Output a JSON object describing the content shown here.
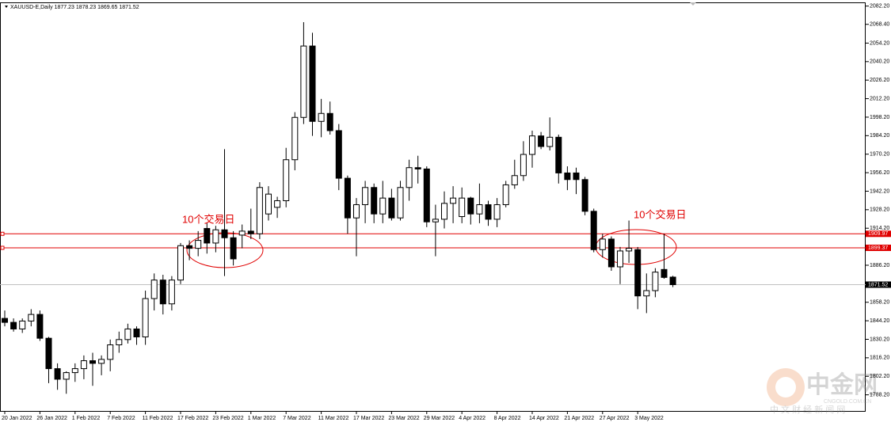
{
  "chart_data": {
    "type": "candlestick",
    "title": "XAUUSD-E,Daily  1877.23 1878.23 1869.65 1871.52",
    "categories": [
      "20 Jan 2022",
      null,
      null,
      null,
      "26 Jan 2022",
      null,
      null,
      null,
      "1 Feb 2022",
      null,
      null,
      null,
      "7 Feb 2022",
      null,
      null,
      null,
      "11 Feb 2022",
      null,
      null,
      null,
      "17 Feb 2022",
      null,
      null,
      null,
      "23 Feb 2022",
      null,
      null,
      null,
      "1 Mar 2022",
      null,
      null,
      null,
      "7 Mar 2022",
      null,
      null,
      null,
      "11 Mar 2022",
      null,
      null,
      null,
      "17 Mar 2022",
      null,
      null,
      null,
      "23 Mar 2022",
      null,
      null,
      null,
      "29 Mar 2022",
      null,
      null,
      null,
      "4 Apr 2022",
      null,
      null,
      null,
      "8 Apr 2022",
      null,
      null,
      null,
      "14 Apr 2022",
      null,
      null,
      null,
      "21 Apr 2022",
      null,
      null,
      null,
      "27 Apr 2022",
      null,
      null,
      null,
      "3 May 2022",
      null,
      null,
      null,
      null
    ],
    "open": [
      1846,
      1843,
      1838,
      1844,
      1849,
      1831,
      1808,
      1800,
      1805,
      1808,
      1814,
      1812,
      1815,
      1826,
      1830,
      1838,
      1832,
      1861,
      1875,
      1857,
      1875,
      1901,
      1899,
      1914,
      1903,
      1913,
      1907,
      1909,
      1912,
      1910,
      1925,
      1930,
      1935,
      1966,
      1998,
      2052,
      1995,
      2001,
      1988,
      1952,
      1922,
      1932,
      1945,
      1925,
      1937,
      1922,
      1945,
      1960,
      1959,
      1919,
      1921,
      1933,
      1923,
      1937,
      1925,
      1932,
      1921,
      1932,
      1947,
      1954,
      1970,
      1984,
      1976,
      1983,
      1956,
      1956,
      1951,
      1927,
      1898,
      1906,
      1885,
      1897,
      1898,
      1863,
      1867,
      1883,
      1877.23
    ],
    "high": [
      1852,
      1846,
      1846,
      1853,
      1852,
      1832,
      1812,
      1806,
      1812,
      1818,
      1820,
      1818,
      1830,
      1836,
      1842,
      1840,
      1867,
      1880,
      1879,
      1878,
      1903,
      1905,
      1912,
      1918,
      1916,
      1974,
      1912,
      1917,
      1929,
      1949,
      1946,
      1938,
      1975,
      2002,
      2070,
      2062,
      2012,
      2010,
      1993,
      1954,
      1937,
      1950,
      1948,
      1950,
      1944,
      1950,
      1966,
      1969,
      1961,
      1932,
      1942,
      1946,
      1945,
      1938,
      1948,
      1935,
      1937,
      1950,
      1966,
      1980,
      1988,
      1987,
      1998,
      1985,
      1961,
      1960,
      1953,
      1929,
      1910,
      1908,
      1900,
      1920,
      1900,
      1880,
      1884,
      1910,
      1878.23
    ],
    "low": [
      1840,
      1836,
      1835,
      1840,
      1829,
      1797,
      1792,
      1789,
      1798,
      1800,
      1795,
      1803,
      1806,
      1820,
      1827,
      1826,
      1826,
      1852,
      1849,
      1852,
      1872,
      1890,
      1893,
      1895,
      1896,
      1878,
      1886,
      1899,
      1906,
      1906,
      1920,
      1922,
      1930,
      1958,
      1993,
      1984,
      1983,
      1985,
      1943,
      1910,
      1893,
      1918,
      1918,
      1918,
      1920,
      1920,
      1935,
      1948,
      1915,
      1893,
      1914,
      1918,
      1918,
      1917,
      1918,
      1916,
      1915,
      1930,
      1944,
      1950,
      1960,
      1974,
      1973,
      1948,
      1943,
      1940,
      1924,
      1896,
      1892,
      1882,
      1872,
      1888,
      1853,
      1850,
      1862,
      1876,
      1869.65
    ],
    "close": [
      1843,
      1838,
      1844,
      1849,
      1831,
      1808,
      1800,
      1805,
      1808,
      1814,
      1812,
      1815,
      1826,
      1830,
      1838,
      1832,
      1861,
      1875,
      1857,
      1875,
      1901,
      1899,
      1905,
      1903,
      1913,
      1907,
      1891,
      1912,
      1910,
      1945,
      1940,
      1935,
      1966,
      1998,
      2052,
      1995,
      2001,
      1988,
      1952,
      1922,
      1932,
      1945,
      1925,
      1937,
      1922,
      1945,
      1960,
      1959,
      1919,
      1921,
      1933,
      1937,
      1937,
      1925,
      1932,
      1921,
      1932,
      1947,
      1954,
      1970,
      1984,
      1976,
      1983,
      1956,
      1951,
      1951,
      1927,
      1898,
      1906,
      1885,
      1897,
      1899,
      1863,
      1867,
      1881,
      1877,
      1871.52
    ],
    "ylim": [
      1776,
      2085
    ],
    "yticks": [
      {
        "value": 2082.2,
        "label": "2082.20"
      },
      {
        "value": 2068.4,
        "label": "2068.40"
      },
      {
        "value": 2054.2,
        "label": "2054.20"
      },
      {
        "value": 2040.2,
        "label": "2040.20"
      },
      {
        "value": 2026.2,
        "label": "2026.20"
      },
      {
        "value": 2012.2,
        "label": "2012.20"
      },
      {
        "value": 1998.2,
        "label": "1998.20"
      },
      {
        "value": 1984.2,
        "label": "1984.20"
      },
      {
        "value": 1970.2,
        "label": "1970.20"
      },
      {
        "value": 1956.2,
        "label": "1956.20"
      },
      {
        "value": 1942.2,
        "label": "1942.20"
      },
      {
        "value": 1928.2,
        "label": "1928.20"
      },
      {
        "value": 1914.2,
        "label": "1914.20"
      },
      {
        "value": 1886.2,
        "label": "1886.20"
      },
      {
        "value": 1858.2,
        "label": "1858.20"
      },
      {
        "value": 1844.2,
        "label": "1844.20"
      },
      {
        "value": 1830.2,
        "label": "1830.20"
      },
      {
        "value": 1816.2,
        "label": "1816.20"
      },
      {
        "value": 1802.2,
        "label": "1802.20"
      },
      {
        "value": 1788.2,
        "label": "1788.20"
      }
    ],
    "hlines": [
      {
        "value": 1909.97,
        "color": "#e00000"
      },
      {
        "value": 1899.37,
        "color": "#e00000"
      }
    ],
    "current_price": {
      "value": 1871.52,
      "color": "#c0c0c0"
    },
    "up_color": "#ffffff",
    "down_color": "#000000",
    "annotations": [
      {
        "text": "10个交易日",
        "color": "#e00000"
      },
      {
        "text": "10个交易日",
        "color": "#e00000"
      }
    ],
    "watermark": {
      "name": "中金网",
      "domain": "CNGOLD.COM.CN",
      "tagline": "中 文 财 经 新 闻 网"
    }
  }
}
